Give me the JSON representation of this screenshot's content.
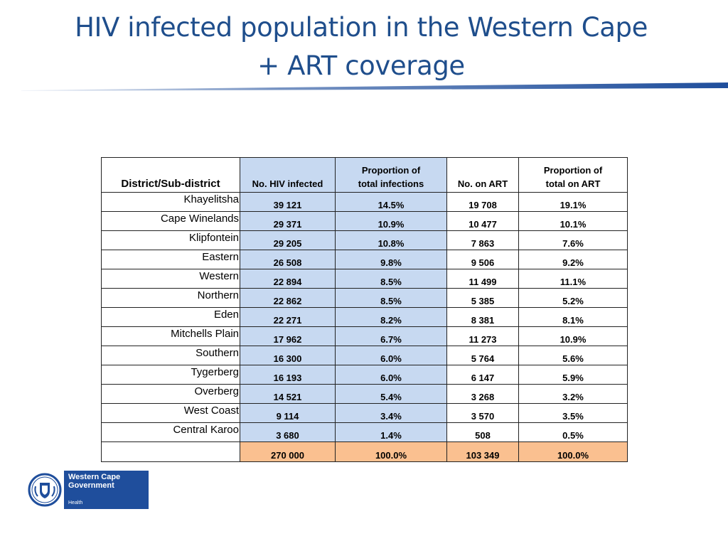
{
  "title": {
    "line1": "HIV infected population in the Western Cape",
    "line2": "+ ART coverage"
  },
  "colors": {
    "title": "#1f4e8c",
    "header_blue": "#c7d9f1",
    "total_orange": "#fac090",
    "logo_blue": "#1f4e9c"
  },
  "table": {
    "headers": {
      "district": "District/Sub-district",
      "hiv_infected": "No. HIV infected",
      "prop_infections_1": "Proportion of",
      "prop_infections_2": "total infections",
      "on_art": "No. on ART",
      "prop_art_1": "Proportion of",
      "prop_art_2": "total on ART"
    },
    "rows": [
      {
        "district": "Khayelitsha",
        "hiv": "39 121",
        "hiv_pct": "14.5%",
        "art": "19 708",
        "art_pct": "19.1%"
      },
      {
        "district": "Cape Winelands",
        "hiv": "29 371",
        "hiv_pct": "10.9%",
        "art": "10 477",
        "art_pct": "10.1%"
      },
      {
        "district": "Klipfontein",
        "hiv": "29 205",
        "hiv_pct": "10.8%",
        "art": "7 863",
        "art_pct": "7.6%"
      },
      {
        "district": "Eastern",
        "hiv": "26 508",
        "hiv_pct": "9.8%",
        "art": "9 506",
        "art_pct": "9.2%"
      },
      {
        "district": "Western",
        "hiv": "22 894",
        "hiv_pct": "8.5%",
        "art": "11 499",
        "art_pct": "11.1%"
      },
      {
        "district": "Northern",
        "hiv": "22 862",
        "hiv_pct": "8.5%",
        "art": "5 385",
        "art_pct": "5.2%"
      },
      {
        "district": "Eden",
        "hiv": "22 271",
        "hiv_pct": "8.2%",
        "art": "8 381",
        "art_pct": "8.1%"
      },
      {
        "district": "Mitchells Plain",
        "hiv": "17 962",
        "hiv_pct": "6.7%",
        "art": "11 273",
        "art_pct": "10.9%"
      },
      {
        "district": "Southern",
        "hiv": "16 300",
        "hiv_pct": "6.0%",
        "art": "5 764",
        "art_pct": "5.6%"
      },
      {
        "district": "Tygerberg",
        "hiv": "16 193",
        "hiv_pct": "6.0%",
        "art": "6 147",
        "art_pct": "5.9%"
      },
      {
        "district": "Overberg",
        "hiv": "14 521",
        "hiv_pct": "5.4%",
        "art": "3 268",
        "art_pct": "3.2%"
      },
      {
        "district": "West Coast",
        "hiv": "9 114",
        "hiv_pct": "3.4%",
        "art": "3 570",
        "art_pct": "3.5%"
      },
      {
        "district": "Central Karoo",
        "hiv": "3 680",
        "hiv_pct": "1.4%",
        "art": "508",
        "art_pct": "0.5%"
      }
    ],
    "total": {
      "district": "",
      "hiv": "270 000",
      "hiv_pct": "100.0%",
      "art": "103 349",
      "art_pct": "100.0%"
    }
  },
  "logo": {
    "name_line1": "Western Cape",
    "name_line2": "Government",
    "department": "Health",
    "emblem": "coat-of-arms-emblem"
  }
}
